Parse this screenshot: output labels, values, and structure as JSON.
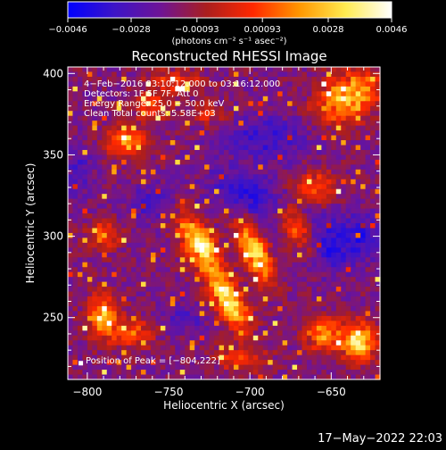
{
  "chart_data": {
    "type": "heatmap",
    "title": "Reconstructed RHESSI Image",
    "xlabel": "Heliocentric X (arcsec)",
    "ylabel": "Heliocentric Y (arcsec)",
    "xlim": [
      -812,
      -620
    ],
    "ylim": [
      212,
      404
    ],
    "x_ticks": [
      -800,
      -750,
      -700,
      -650
    ],
    "y_ticks": [
      250,
      300,
      350,
      400
    ],
    "x_tick_labels": [
      "−800",
      "−750",
      "−700",
      "−650"
    ],
    "y_tick_labels": [
      "250",
      "300",
      "350",
      "400"
    ],
    "colorbar": {
      "range": [
        -0.0046,
        0.0046
      ],
      "ticks": [
        -0.0046,
        -0.0028,
        -0.00093,
        0.00093,
        0.0028,
        0.0046
      ],
      "tick_labels": [
        "−0.0046",
        "−0.0028",
        "−0.00093",
        "0.00093",
        "0.0028",
        "0.0046"
      ],
      "colors": [
        "#0000ff",
        "#3c14c8",
        "#6e1496",
        "#aa1e1e",
        "#ff2800",
        "#ff9600",
        "#ffeb50",
        "#ffffff"
      ],
      "units_label": "(photons cm⁻² s⁻¹ asec⁻²)"
    },
    "annotations": [
      "4−Feb−2016 03:10:12.000 to 03:16:12.000",
      "Detectors: 1F 5F 7F, Att 0",
      "Energy Range: 25.0 − 50.0 keV",
      "Clean     Total counts: 5.58E+03"
    ],
    "peak_label": "Position of Peak = [−804,222]",
    "peak": [
      -804,
      222
    ],
    "grid": false
  },
  "footer": {
    "date": "17−May−2022 22:03"
  }
}
